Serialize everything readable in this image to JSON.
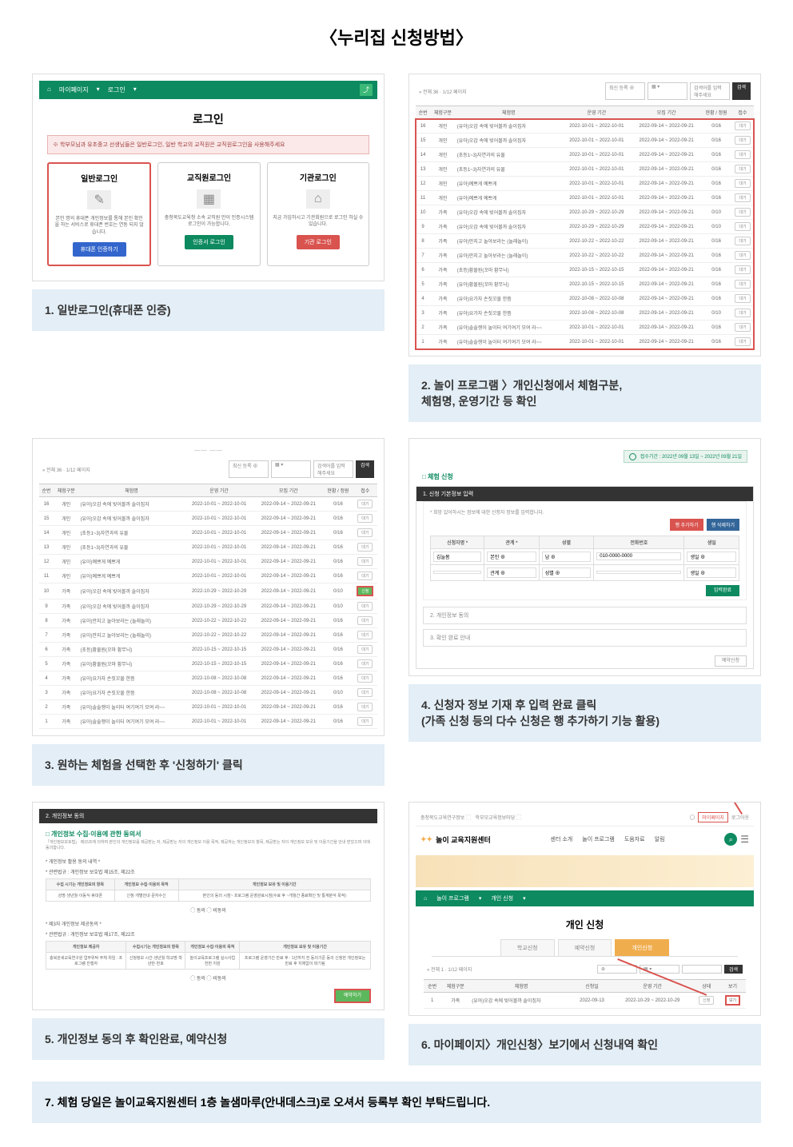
{
  "title": "〈누리집 신청방법〉",
  "step1": {
    "caption": "1. 일반로그인(휴대폰 인증)",
    "nav_mypage": "마이페이지",
    "nav_login": "로그인",
    "login_title": "로그인",
    "note": "※ 학부모님과 유초중고 선생님들은 일반로그인, 일반 학교의 교직원은 교직원로그인을 사용해주세요",
    "cards": [
      {
        "title": "일반로그인",
        "desc": "본인 명의 휴대폰 개인정보를 통해 본인 확인을 하는 서비스로 휴대폰 번호는 연동 되지 않습니다.",
        "btn": "휴대폰 인증하기"
      },
      {
        "title": "교직원로그인",
        "desc": "충청북도교육청 소속 교직원 만이 인증시스템 로그인이 가능합니다.",
        "btn": "인증서 로그인"
      },
      {
        "title": "기관로그인",
        "desc": "지금 가입하시고 기관회원으로 로그인 하실 수 있습니다.",
        "btn": "기관 로그인"
      }
    ]
  },
  "step2": {
    "caption": "2. 놀이 프로그램 〉개인신청에서 체험구분,\n    체험명, 운영기간 등 확인",
    "topbar_left": "» 전체 36 · 1/12 페이지",
    "topbar_filter": "최신 등록  ⊕",
    "topbar_search": "검색어를 입력해주세요",
    "search_btn": "검색",
    "cols": [
      "순번",
      "체험구분",
      "체험명",
      "운영 기간",
      "모집 기간",
      "현황 / 정원",
      "접수"
    ],
    "rows": [
      [
        "16",
        "개인",
        "(유아)오감 속에 빚어볼까 솔이집자",
        "2022-10-01 ~ 2022-10-01",
        "2022-09-14 ~ 2022-09-21",
        "0/16",
        "대기"
      ],
      [
        "15",
        "개인",
        "(유아)오감 속에 빚어볼까 솔이집자",
        "2022-10-01 ~ 2022-10-01",
        "2022-09-14 ~ 2022-09-21",
        "0/16",
        "대기"
      ],
      [
        "14",
        "개인",
        "(초등1~3)자연과의 유물",
        "2022-10-01 ~ 2022-10-01",
        "2022-09-14 ~ 2022-09-21",
        "0/16",
        "대기"
      ],
      [
        "13",
        "개인",
        "(초등1~3)자연과의 유물",
        "2022-10-01 ~ 2022-10-01",
        "2022-09-14 ~ 2022-09-21",
        "0/16",
        "대기"
      ],
      [
        "12",
        "개인",
        "(유아)예쁘게 예쁘게",
        "2022-10-01 ~ 2022-10-01",
        "2022-09-14 ~ 2022-09-21",
        "0/16",
        "대기"
      ],
      [
        "11",
        "개인",
        "(유아)예쁘게 예쁘게",
        "2022-10-01 ~ 2022-10-01",
        "2022-09-14 ~ 2022-09-21",
        "0/16",
        "대기"
      ],
      [
        "10",
        "가족",
        "(유아)오감 속에 빚어볼까 솔이집자",
        "2022-10-29 ~ 2022-10-29",
        "2022-09-14 ~ 2022-09-21",
        "0/10",
        "대기"
      ],
      [
        "9",
        "가족",
        "(유아)오감 속에 빚어볼까 솔이집자",
        "2022-10-29 ~ 2022-10-29",
        "2022-09-14 ~ 2022-09-21",
        "0/10",
        "대기"
      ],
      [
        "8",
        "가족",
        "(유아)만지고 놀아보라는 (놀래놀이)",
        "2022-10-22 ~ 2022-10-22",
        "2022-09-14 ~ 2022-09-21",
        "0/16",
        "대기"
      ],
      [
        "7",
        "가족",
        "(유아)만지고 놀아보라는 (놀래놀이)",
        "2022-10-22 ~ 2022-10-22",
        "2022-09-14 ~ 2022-09-21",
        "0/16",
        "대기"
      ],
      [
        "6",
        "가족",
        "(초등)황물원(꼬마 황무늬)",
        "2022-10-15 ~ 2022-10-15",
        "2022-09-14 ~ 2022-09-21",
        "0/16",
        "대기"
      ],
      [
        "5",
        "가족",
        "(유아)황물원(꼬마 황무늬)",
        "2022-10-15 ~ 2022-10-15",
        "2022-09-14 ~ 2022-09-21",
        "0/16",
        "대기"
      ],
      [
        "4",
        "가족",
        "(유아)요가자 손짓꼬물 한뜸",
        "2022-10-08 ~ 2022-10-08",
        "2022-09-14 ~ 2022-09-21",
        "0/16",
        "대기"
      ],
      [
        "3",
        "가족",
        "(유아)요가자 손짓꼬물 한뜸",
        "2022-10-08 ~ 2022-10-08",
        "2022-09-14 ~ 2022-09-21",
        "0/10",
        "대기"
      ],
      [
        "2",
        "가족",
        "(유아)솔솔쟁이 놀이터 여기여기 모여\n라~~",
        "2022-10-01 ~ 2022-10-01",
        "2022-09-14 ~ 2022-09-21",
        "0/16",
        "대기"
      ],
      [
        "1",
        "가족",
        "(유아)솔솔쟁이 놀이터 여기여기 모여\n라~~",
        "2022-10-01 ~ 2022-10-01",
        "2022-09-14 ~ 2022-09-21",
        "0/16",
        "대기"
      ]
    ]
  },
  "step3": {
    "caption": "3. 원하는 체험을 선택한 후 '신청하기' 클릭",
    "hl_index": 6
  },
  "step4": {
    "caption": "4. 신청자 정보 기재 후 입력 완료 클릭\n    (가족 신청 등의 다수 신청은 행 추가하기 기능 활용)",
    "period": "접수기간 : 2022년 09월 13일 ~ 2022년 09월 21일",
    "section_title": "□ 체험 신청",
    "panel1": "1. 신청 기본정보 입력",
    "note": "* 희망 있어하시는 정보에 대한 신청자 정보를 입력합니다.",
    "btn_add": "행 추가하기",
    "btn_reset": "행 삭제하기",
    "th": [
      "신청자명 *",
      "관계 *",
      "성별",
      "전화번호",
      "생일"
    ],
    "r1": {
      "name": "김늘봄",
      "rel": "본인",
      "gender": "남",
      "phone": "010-0000-0000",
      "birth": "생일"
    },
    "r2": {
      "name": "",
      "rel": "관계",
      "gender": "성별",
      "phone": "",
      "birth": "생일"
    },
    "done": "입력완료",
    "panel2": "2. 개인정보 동의",
    "panel3": "3. 확인 완료 안내",
    "bottom": "예약신청"
  },
  "step5": {
    "caption": "5. 개인정보 동의 후 확인완료, 예약신청",
    "head": "2. 개인정보 동의",
    "title": "□ 개인정보 수집·이용에 관한 동의서",
    "intro": "「개인정보보호법」 제15조에 의하여 본인의 개인정보를 제공받는 자, 제공받는 자의 개인정보 이용 목적, 제공하는 개인정보의 항목, 제공받는 자의 개인정보 보유 및 이용기간을 안내 받았으며 이에 동의합니다.",
    "label1": "* 개인정보 활용 동의 내역 *",
    "label1b": "* 관련법규 : 개인정보 보호법 제15조, 제22조",
    "t1_head": [
      "수집 시기는 개인정보의 항목",
      "개인정보 수집·이용의 목적",
      "개인정보 보유 및 이용기간"
    ],
    "t1_row": [
      "성명·생년월·이동식·휴대폰",
      "신청·개별안내·문자수신",
      "본인의 동의 시점~\n프로그램 운영완료시점(수료 후 ~개월간 종료확인 및 통계분석 목적)"
    ],
    "agree": "◯ 동의 ◯ 비동의",
    "label2": "* 제3자 개인정보 제공동의 *",
    "label2b": "* 관련법규 : 개인정보 보호법 제17조, 제22조",
    "t2_head": [
      "개인정보 제공자",
      "수집시기는 개인정보의 항목",
      "개인정보 수집·이용의 목적",
      "개인정보 보유 및 이용기간"
    ],
    "t2_row": [
      "충북관세교육연구원 업무위탁 주체\n위임 : 프로그램 진행자",
      "신청정보\n시간·생년월·학교명·학년반·번호",
      "놀이교육프로그램 실시사업 전반 지원",
      "프로그램 운영기간 만료 후 : 1년까지\n전 동의기준 동의 신청한 개인정보는 만료 후 지체없이 파기됨"
    ],
    "submit": "예약하기"
  },
  "step6": {
    "caption": "6. 마이페이지〉개인신청〉보기에서 신청내역 확인",
    "top_links": [
      "충청북도교육연구정보 ⬚",
      "학부모교육정보마당 ⬚"
    ],
    "mypage": "마이페이지",
    "logout": "로그아웃",
    "brand": "놀이 교육지원센터",
    "menu": [
      "센터 소개",
      "놀이 프로그램",
      "도움자료",
      "알림"
    ],
    "nav_prog": "놀이 프로그램",
    "nav_person": "개인 신청",
    "page_h": "개인 신청",
    "tabs": [
      "학교신청",
      "예약신청",
      "개인신청"
    ],
    "topbar_left": "» 전체 1 · 1/12 페이지",
    "search_btn": "검색",
    "cols": [
      "순번",
      "체험구분",
      "체험명",
      "신청일",
      "운영 기간",
      "상태",
      "보기"
    ],
    "row": [
      "1",
      "가족",
      "(유아)오감 속에 빚어볼까 솔이집자",
      "2022-09-13",
      "2022-10-29 ~ 2022-10-29",
      "신청",
      "보기"
    ]
  },
  "step7": {
    "caption": "7. 체험 당일은 놀이교육지원센터 1층 놀샘마루(안내데스크)로 오셔서 등록부 확인 부탁드립니다."
  }
}
